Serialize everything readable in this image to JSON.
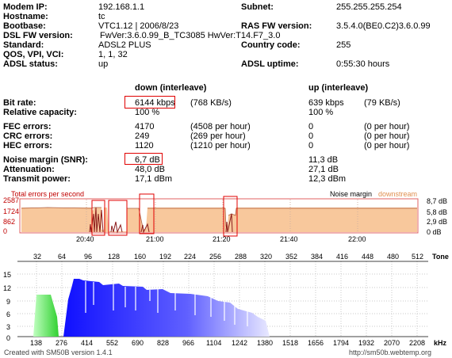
{
  "info": {
    "modem_ip_label": "Modem IP:",
    "modem_ip": "192.168.1.1",
    "hostname_label": "Hostname:",
    "hostname": "tc",
    "bootbase_label": "Bootbase:",
    "bootbase": "VTC1.12 | 2006/8/23",
    "dsl_fw_label": "DSL FW version:",
    "dsl_fw": "FwVer:3.6.0.99_B_TC3085 HwVer:T14.F7_3.0",
    "standard_label": "Standard:",
    "standard": "ADSL2 PLUS",
    "qos_label": "QOS, VPI, VCI:",
    "qos": "1, 1, 32",
    "adsl_status_label": "ADSL status:",
    "adsl_status": "up",
    "subnet_label": "Subnet:",
    "subnet": "255.255.255.254",
    "ras_fw_label": "RAS FW version:",
    "ras_fw": "3.5.4.0(BE0.C2)3.6.0.99",
    "country_label": "Country code:",
    "country": "255",
    "uptime_label": "ADSL uptime:",
    "uptime": "0:55:30 hours"
  },
  "stats": {
    "down_header": "down (interleave)",
    "up_header": "up (interleave)",
    "rows": [
      {
        "label": "Bit rate:",
        "down": "6144 kbps",
        "down2": "(768 KB/s)",
        "up": "639 kbps",
        "up2": "(79 KB/s)"
      },
      {
        "label": "Relative capacity:",
        "down": "100 %",
        "down2": "",
        "up": "100 %",
        "up2": ""
      },
      {
        "label": "FEC errors:",
        "down": "4170",
        "down2": "(4508 per hour)",
        "up": "0",
        "up2": "(0 per hour)"
      },
      {
        "label": "CRC errors:",
        "down": "249",
        "down2": "(269 per hour)",
        "up": "0",
        "up2": "(0 per hour)"
      },
      {
        "label": "HEC errors:",
        "down": "1120",
        "down2": "(1210 per hour)",
        "up": "0",
        "up2": "(0 per hour)"
      },
      {
        "label": "Noise margin (SNR):",
        "down": "6,7 dB",
        "down2": "",
        "up": "11,3 dB",
        "up2": ""
      },
      {
        "label": "Attenuation:",
        "down": "48,0 dB",
        "down2": "",
        "up": "27,1 dB",
        "up2": ""
      },
      {
        "label": "Transmit power:",
        "down": "17,1 dBm",
        "down2": "",
        "up": "12,3 dBm",
        "up2": ""
      }
    ]
  },
  "timeline": {
    "errors_label": "Total errors per second",
    "noise_label": "Noise margin",
    "downstream_label": "downstream",
    "left_ticks": [
      "2587",
      "1724",
      "862",
      "0"
    ],
    "right_ticks": [
      "8,7 dB",
      "5,8 dB",
      "2,9 dB",
      "0 dB"
    ],
    "time_ticks": [
      "20:40",
      "21:00",
      "21:20",
      "21:40",
      "22:00"
    ],
    "colors": {
      "noise_fill": "#f8c89c",
      "noise_line": "#8b1a1a",
      "frame": "#e06060",
      "errors_text": "#c00000",
      "downstream_text": "#e09050"
    }
  },
  "spectrum": {
    "tone_label": "Tone",
    "khz_label": "kHz",
    "tone_ticks": [
      "32",
      "64",
      "96",
      "128",
      "160",
      "192",
      "224",
      "256",
      "288",
      "320",
      "352",
      "384",
      "416",
      "448",
      "480",
      "512"
    ],
    "y_ticks": [
      "15",
      "12",
      "9",
      "6",
      "3",
      "0"
    ],
    "khz_ticks": [
      "138",
      "276",
      "414",
      "552",
      "690",
      "828",
      "966",
      "1104",
      "1242",
      "1380",
      "1518",
      "1656",
      "1794",
      "1932",
      "2070",
      "2208"
    ],
    "colors": {
      "up_band": "#40e040",
      "down_band": "#2020ff"
    }
  },
  "footer": {
    "created": "Created with SM50B version 1.4.1",
    "url": "http://sm50b.webtemp.org"
  }
}
